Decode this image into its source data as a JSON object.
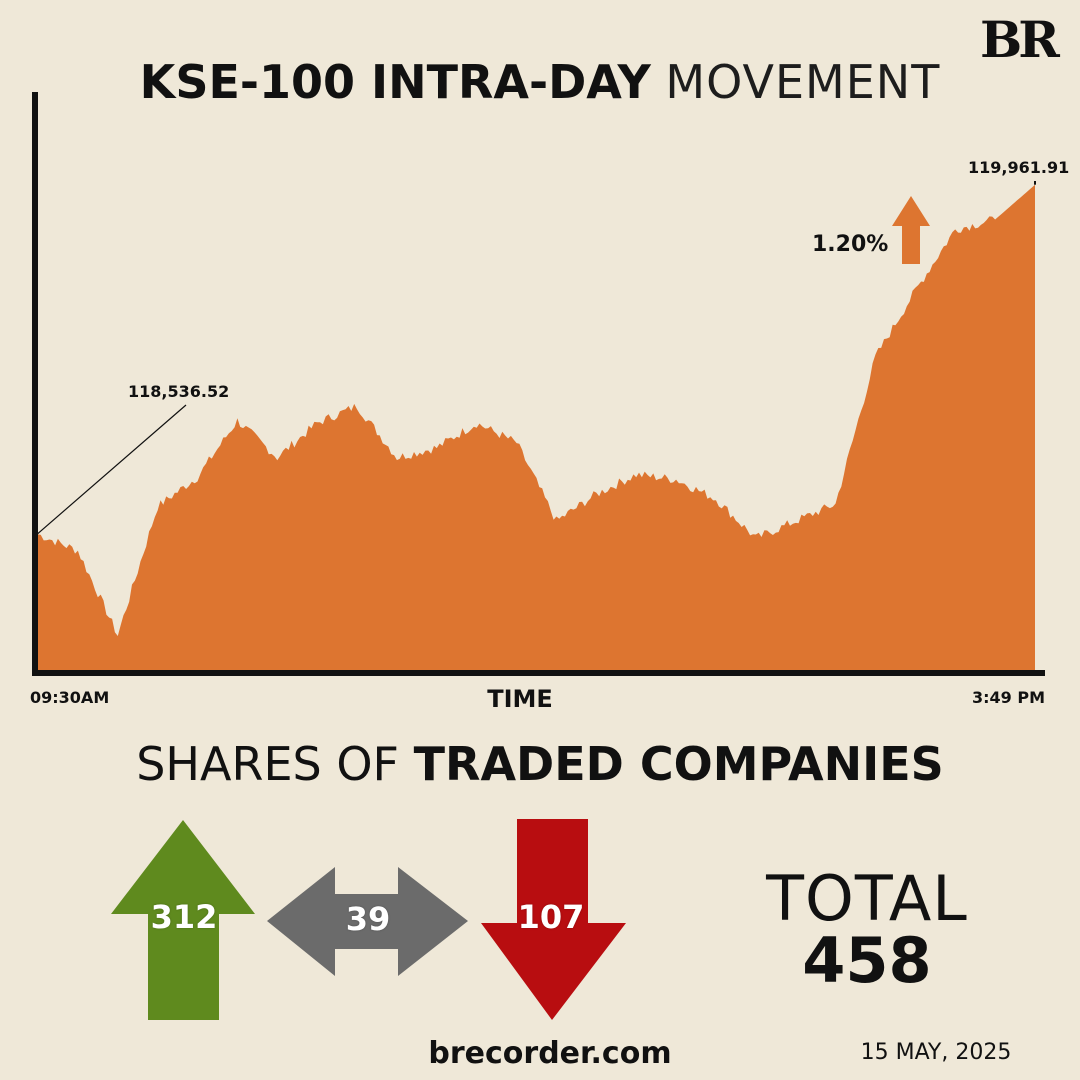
{
  "brand": {
    "logo": "BR"
  },
  "title": {
    "bold": "KSE-100 INTRA-DAY",
    "light": "MOVEMENT"
  },
  "chart_data": {
    "type": "area",
    "title": "KSE-100 INTRA-DAY MOVEMENT",
    "xlabel": "TIME",
    "x_ticks": [
      "09:30AM",
      "3:49 PM"
    ],
    "ylabel": "",
    "series": [
      {
        "name": "KSE-100",
        "color": "#dd7530",
        "x": [
          "09:30AM",
          "09:45AM",
          "10:00AM",
          "10:15AM",
          "10:30AM",
          "10:45AM",
          "11:00AM",
          "11:15AM",
          "11:30AM",
          "11:45AM",
          "12:00PM",
          "12:15PM",
          "12:30PM",
          "12:45PM",
          "01:00PM",
          "01:15PM",
          "01:30PM",
          "01:45PM",
          "02:00PM",
          "02:15PM",
          "02:30PM",
          "02:45PM",
          "03:00PM",
          "03:15PM",
          "03:30PM",
          "03:49PM"
        ],
        "values": [
          118536.52,
          118470,
          118125,
          118650,
          118770,
          119000,
          118850,
          118990,
          119060,
          118850,
          118890,
          118990,
          118910,
          118590,
          118700,
          118780,
          118760,
          118680,
          118520,
          118590,
          118660,
          119260,
          119530,
          119780,
          119820,
          119961.91
        ]
      }
    ],
    "ylim": [
      117975,
      120340
    ],
    "annotations": [
      {
        "label": "118,536.52",
        "at": "start"
      },
      {
        "label": "119,961.91",
        "at": "end"
      },
      {
        "label": "1.20%",
        "direction": "up"
      }
    ]
  },
  "traded": {
    "title_light": "SHARES OF",
    "title_bold": "TRADED COMPANIES",
    "up": {
      "value": "312",
      "color": "#5f8a1e"
    },
    "unchanged": {
      "value": "39",
      "color": "#6b6b6b"
    },
    "down": {
      "value": "107",
      "color": "#b80d10"
    },
    "total_label": "TOTAL",
    "total_value": "458"
  },
  "footer": {
    "site": "brecorder.com",
    "date": "15 MAY, 2025"
  }
}
